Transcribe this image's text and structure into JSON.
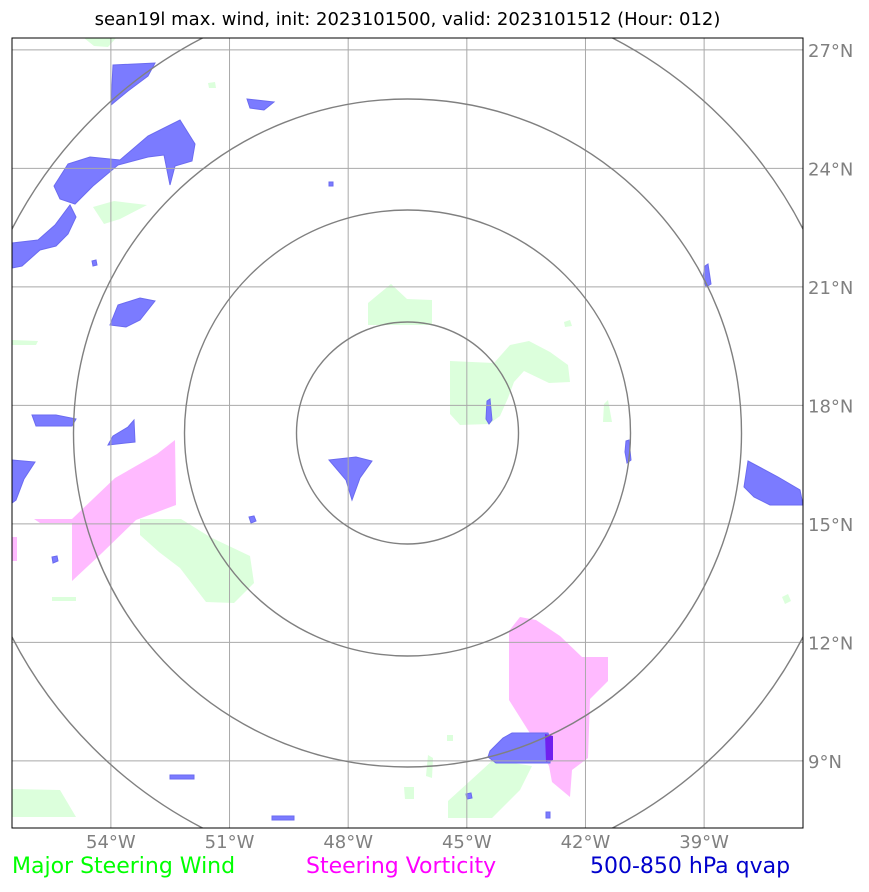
{
  "title": "sean19l max. wind, init: 2023101500, valid: 2023101512 (Hour: 012)",
  "lon_ticks": [
    "54°W",
    "51°W",
    "48°W",
    "45°W",
    "42°W",
    "39°W"
  ],
  "lat_ticks": [
    "27°N",
    "24°N",
    "21°N",
    "18°N",
    "15°N",
    "12°N",
    "9°N"
  ],
  "legend": [
    {
      "label": "Major Steering Wind",
      "color": "#00ff00"
    },
    {
      "label": "Steering Vorticity",
      "color": "#ff00ff"
    },
    {
      "label": "500-850 hPa qvap",
      "color": "#0000cc"
    }
  ],
  "colors": {
    "wind_fill": "#dcffdc",
    "vorticity_fill": "#ffbaff",
    "qvap_fill": "#7b7bff",
    "grid": "#a9a9a9",
    "rings": "#808080",
    "tick_text": "#808080"
  },
  "map": {
    "lon_range": [
      -56.5,
      -36.5
    ],
    "lat_range": [
      7.3,
      27.3
    ],
    "rings_center": [
      -46.5,
      17.3
    ]
  }
}
